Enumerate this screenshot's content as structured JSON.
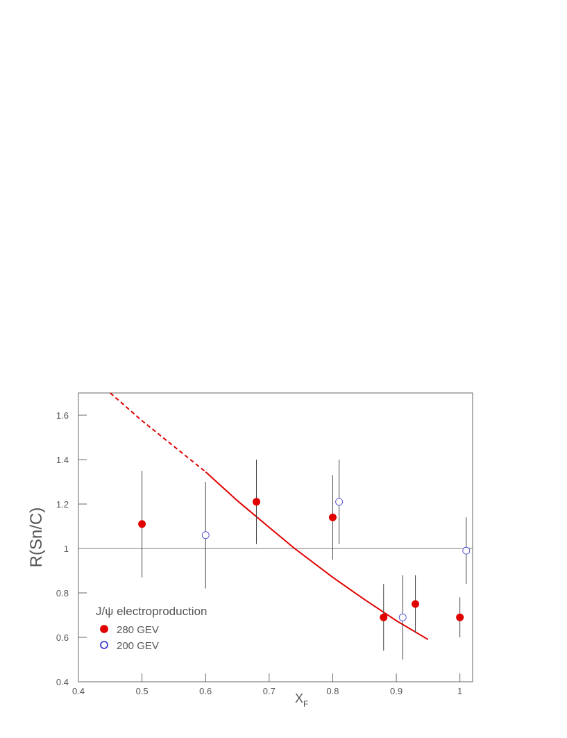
{
  "chart_data": {
    "type": "scatter",
    "y_label": "R(Sn/C)",
    "x_label": "X",
    "x_label_subscript": "F",
    "annotation": "J/ψ electroproduction",
    "xlim": [
      0.4,
      1.02
    ],
    "ylim": [
      0.4,
      1.7
    ],
    "xticks": [
      0.4,
      0.5,
      0.6,
      0.7,
      0.8,
      0.9,
      1
    ],
    "yticks": [
      0.4,
      0.6,
      0.8,
      1,
      1.2,
      1.4,
      1.6
    ],
    "reference_line": 1,
    "legend": "lower left",
    "series": [
      {
        "name": "280 GEV",
        "color": "#e00000",
        "filled": true,
        "x": [
          0.5,
          0.68,
          0.8,
          0.88,
          0.93,
          1.0
        ],
        "values": [
          1.11,
          1.21,
          1.14,
          0.69,
          0.75,
          0.69
        ],
        "errors": [
          0.24,
          0.19,
          0.19,
          0.15,
          0.13,
          0.09
        ]
      },
      {
        "name": "200 GEV",
        "color": "#3a3ad0",
        "filled": false,
        "x": [
          0.6,
          0.81,
          0.91,
          1.01
        ],
        "values": [
          1.06,
          1.21,
          0.69,
          0.99
        ],
        "errors": [
          0.24,
          0.19,
          0.19,
          0.15
        ]
      }
    ],
    "curves": [
      {
        "color": "#e00000",
        "dashed": true,
        "x": [
          0.45,
          0.5,
          0.55,
          0.6
        ],
        "values": [
          1.7,
          1.575,
          1.46,
          1.345
        ]
      },
      {
        "color": "#e00000",
        "dashed": false,
        "x": [
          0.6,
          0.65,
          0.7,
          0.74,
          0.8,
          0.85,
          0.9,
          0.95
        ],
        "values": [
          1.345,
          1.215,
          1.095,
          1.0,
          0.87,
          0.77,
          0.675,
          0.59
        ]
      }
    ]
  }
}
